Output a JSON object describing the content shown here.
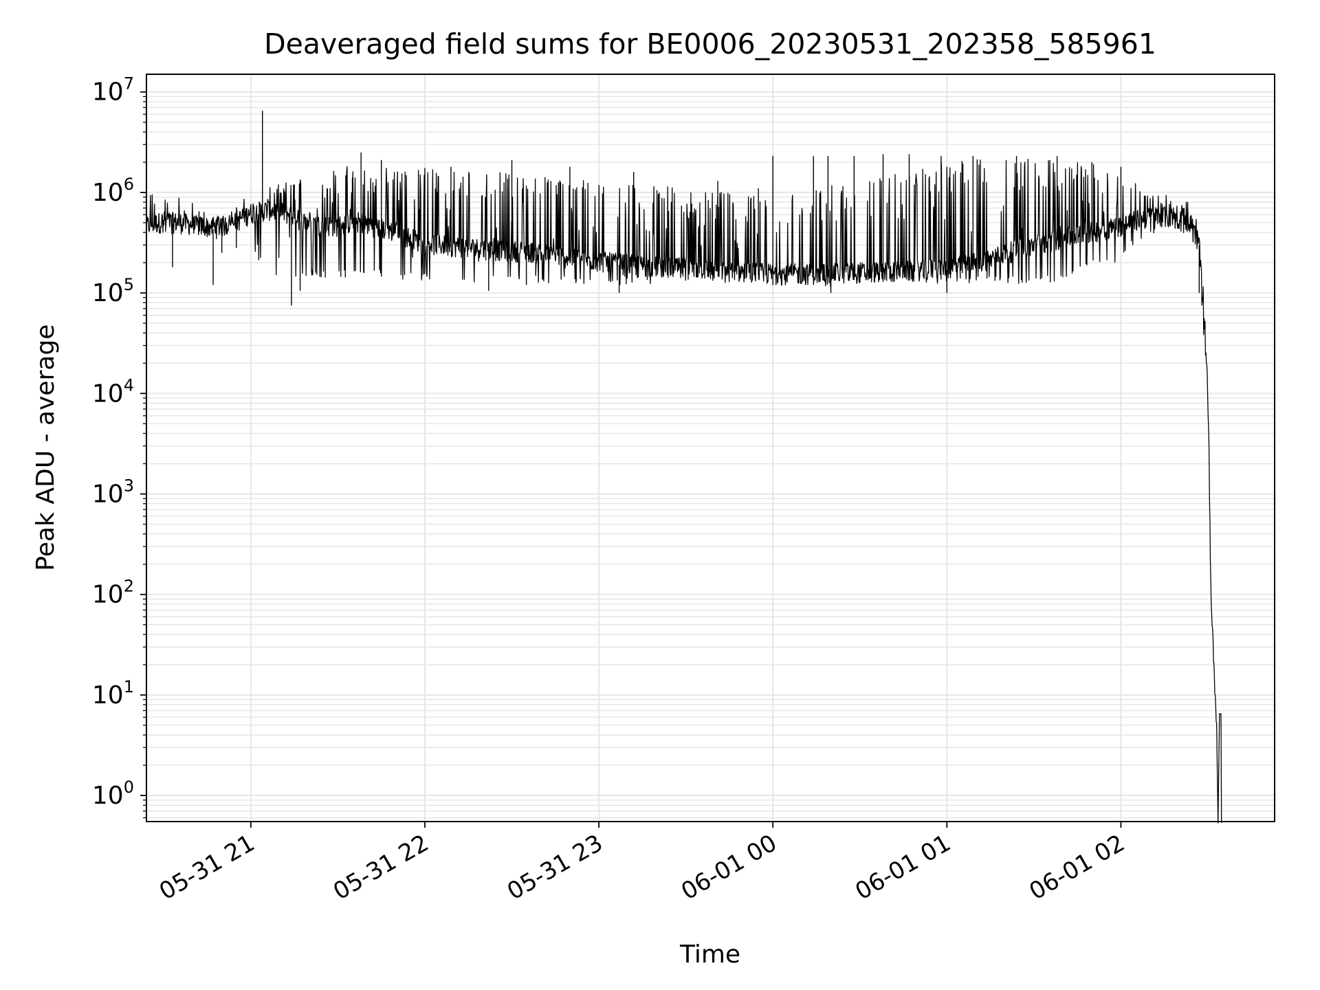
{
  "chart_data": {
    "type": "line",
    "title": "Deaveraged field sums for BE0006_20230531_202358_585961",
    "xlabel": "Time",
    "ylabel": "Peak ADU - average",
    "yscale": "log",
    "grid": true,
    "legend": "none",
    "line_color": "#000000",
    "grid_color": "#e6e6e6",
    "xlim": [
      "2023-05-31 20:24",
      "2023-06-01 02:53"
    ],
    "ylim": [
      0.55,
      15000000
    ],
    "x_ticks": [
      {
        "t": "2023-05-31 21:00",
        "label": "05-31 21"
      },
      {
        "t": "2023-05-31 22:00",
        "label": "05-31 22"
      },
      {
        "t": "2023-05-31 23:00",
        "label": "05-31 23"
      },
      {
        "t": "2023-06-01 00:00",
        "label": "06-01 00"
      },
      {
        "t": "2023-06-01 01:00",
        "label": "06-01 01"
      },
      {
        "t": "2023-06-01 02:00",
        "label": "06-01 02"
      }
    ],
    "y_ticks": [
      {
        "value": 1,
        "base": "10",
        "exp": "0"
      },
      {
        "value": 10,
        "base": "10",
        "exp": "1"
      },
      {
        "value": 100,
        "base": "10",
        "exp": "2"
      },
      {
        "value": 1000,
        "base": "10",
        "exp": "3"
      },
      {
        "value": 10000,
        "base": "10",
        "exp": "4"
      },
      {
        "value": 100000,
        "base": "10",
        "exp": "5"
      },
      {
        "value": 1000000,
        "base": "10",
        "exp": "6"
      },
      {
        "value": 10000000,
        "base": "10",
        "exp": "7"
      }
    ],
    "series": [
      {
        "x": [
          "2023-05-31 20:24",
          "2023-05-31 20:30",
          "2023-05-31 20:36",
          "2023-05-31 20:42",
          "2023-05-31 20:48",
          "2023-05-31 20:54",
          "2023-05-31 21:00",
          "2023-05-31 21:06",
          "2023-05-31 21:12",
          "2023-05-31 21:18",
          "2023-05-31 21:24",
          "2023-05-31 21:30",
          "2023-05-31 21:36",
          "2023-05-31 21:42",
          "2023-05-31 21:48",
          "2023-05-31 21:54",
          "2023-05-31 22:00",
          "2023-05-31 22:12",
          "2023-05-31 22:24",
          "2023-05-31 22:36",
          "2023-05-31 22:48",
          "2023-05-31 23:00",
          "2023-05-31 23:15",
          "2023-05-31 23:30",
          "2023-05-31 23:45",
          "2023-06-01 00:00",
          "2023-06-01 00:15",
          "2023-06-01 00:30",
          "2023-06-01 00:45",
          "2023-06-01 01:00",
          "2023-06-01 01:12",
          "2023-06-01 01:24",
          "2023-06-01 01:36",
          "2023-06-01 01:48",
          "2023-06-01 02:00",
          "2023-06-01 02:06",
          "2023-06-01 02:12",
          "2023-06-01 02:18",
          "2023-06-01 02:24",
          "2023-06-01 02:27",
          "2023-06-01 02:30",
          "2023-06-01 02:31",
          "2023-06-01 02:33"
        ],
        "y": [
          450000,
          500000,
          480000,
          450000,
          430000,
          480000,
          600000,
          650000,
          600000,
          500000,
          450000,
          450000,
          500000,
          450000,
          400000,
          350000,
          300000,
          280000,
          260000,
          250000,
          220000,
          200000,
          180000,
          170000,
          160000,
          150000,
          150000,
          155000,
          160000,
          170000,
          200000,
          260000,
          320000,
          380000,
          450000,
          520000,
          560000,
          540000,
          480000,
          300000,
          10000,
          100,
          5
        ],
        "low": [
          350000,
          380000,
          380000,
          380000,
          400000,
          500000,
          300000,
          150000,
          150000,
          150000,
          150000,
          150000,
          150000,
          150000,
          150000,
          140000,
          140000,
          135000,
          135000,
          130000,
          130000,
          125000,
          130000,
          130000,
          130000,
          125000,
          120000,
          125000,
          130000,
          130000,
          130000,
          130000,
          130000,
          180000,
          220000,
          350000,
          420000,
          450000,
          400000,
          200000,
          8000,
          100,
          5
        ],
        "high": [
          1000000,
          1000000,
          1000000,
          700000,
          600000,
          700000,
          1000000,
          1100000,
          1300000,
          1500000,
          1700000,
          1900000,
          1800000,
          1800000,
          1800000,
          1800000,
          1700000,
          1700000,
          1600000,
          1500000,
          1400000,
          1300000,
          1200000,
          1100000,
          1000000,
          900000,
          1100000,
          1300000,
          1600000,
          2000000,
          2200000,
          2200000,
          2200000,
          2000000,
          1600000,
          1200000,
          1000000,
          900000,
          800000,
          500000,
          30000,
          100,
          5
        ],
        "spikes": [
          {
            "x": "2023-05-31 21:04",
            "y": 6500000
          },
          {
            "x": "2023-05-31 21:15",
            "y": 1200000
          },
          {
            "x": "2023-05-31 21:35",
            "y": 1400000
          },
          {
            "x": "2023-05-31 21:38",
            "y": 2500000
          },
          {
            "x": "2023-05-31 21:45",
            "y": 2100000
          },
          {
            "x": "2023-05-31 22:00",
            "y": 1750000
          },
          {
            "x": "2023-05-31 22:09",
            "y": 1800000
          },
          {
            "x": "2023-05-31 22:30",
            "y": 2100000
          },
          {
            "x": "2023-05-31 22:50",
            "y": 1800000
          },
          {
            "x": "2023-05-31 23:12",
            "y": 1600000
          },
          {
            "x": "2023-05-31 23:41",
            "y": 1300000
          },
          {
            "x": "2023-05-31 23:55",
            "y": 1100000
          },
          {
            "x": "2023-06-01 00:00",
            "y": 2300000
          },
          {
            "x": "2023-06-01 00:14",
            "y": 2300000
          },
          {
            "x": "2023-06-01 00:19",
            "y": 2300000
          },
          {
            "x": "2023-06-01 00:28",
            "y": 2300000
          },
          {
            "x": "2023-06-01 00:38",
            "y": 2400000
          },
          {
            "x": "2023-06-01 00:47",
            "y": 2400000
          },
          {
            "x": "2023-06-01 00:58",
            "y": 2300000
          },
          {
            "x": "2023-06-01 01:09",
            "y": 2300000
          },
          {
            "x": "2023-06-01 01:24",
            "y": 2300000
          },
          {
            "x": "2023-06-01 01:38",
            "y": 2300000
          },
          {
            "x": "2023-06-01 01:50",
            "y": 2000000
          },
          {
            "x": "2023-06-01 02:00",
            "y": 1800000
          }
        ],
        "dips": [
          {
            "x": "2023-05-31 20:33",
            "y": 180000
          },
          {
            "x": "2023-05-31 20:47",
            "y": 120000
          },
          {
            "x": "2023-05-31 20:50",
            "y": 250000
          },
          {
            "x": "2023-05-31 20:55",
            "y": 280000
          },
          {
            "x": "2023-05-31 21:14",
            "y": 75000
          },
          {
            "x": "2023-05-31 21:17",
            "y": 105000
          },
          {
            "x": "2023-05-31 22:22",
            "y": 105000
          },
          {
            "x": "2023-05-31 22:35",
            "y": 120000
          },
          {
            "x": "2023-05-31 23:07",
            "y": 100000
          },
          {
            "x": "2023-06-01 00:00",
            "y": 120000
          },
          {
            "x": "2023-06-01 00:20",
            "y": 100000
          },
          {
            "x": "2023-06-01 01:00",
            "y": 100000
          },
          {
            "x": "2023-06-01 02:27",
            "y": 100000
          }
        ]
      }
    ]
  }
}
